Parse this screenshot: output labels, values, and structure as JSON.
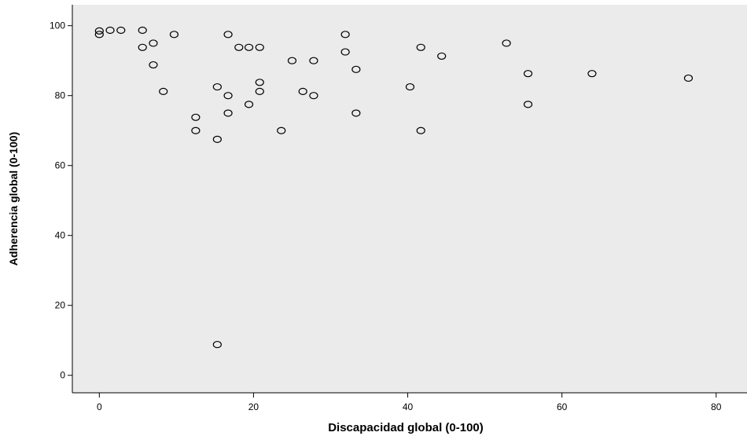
{
  "chart_data": {
    "type": "scatter",
    "title": "",
    "xlabel": "Discapacidad global (0-100)",
    "ylabel": "Adherencia global (0-100)",
    "xlim": [
      -3.5,
      84
    ],
    "ylim": [
      -5,
      106
    ],
    "xticks": [
      0,
      20,
      40,
      60,
      80
    ],
    "yticks": [
      0,
      20,
      40,
      60,
      80,
      100
    ],
    "grid": false,
    "legend": "none",
    "colors": {
      "plot_background": "#ebebeb",
      "marker_stroke": "#000000",
      "axis": "#000000"
    },
    "series": [
      {
        "marker": "hollow-circle",
        "points": [
          [
            0,
            98.5
          ],
          [
            0,
            97.5
          ],
          [
            1.4,
            98.7
          ],
          [
            2.8,
            98.7
          ],
          [
            5.6,
            98.7
          ],
          [
            5.6,
            93.8
          ],
          [
            7.0,
            95.0
          ],
          [
            7.0,
            88.8
          ],
          [
            8.3,
            81.2
          ],
          [
            9.7,
            97.5
          ],
          [
            12.5,
            73.8
          ],
          [
            12.5,
            70.0
          ],
          [
            15.3,
            82.5
          ],
          [
            15.3,
            67.5
          ],
          [
            15.3,
            8.8
          ],
          [
            16.7,
            97.5
          ],
          [
            16.7,
            80.0
          ],
          [
            16.7,
            75.0
          ],
          [
            18.1,
            93.8
          ],
          [
            19.4,
            93.8
          ],
          [
            19.4,
            77.5
          ],
          [
            20.8,
            93.8
          ],
          [
            20.8,
            83.8
          ],
          [
            20.8,
            81.2
          ],
          [
            23.6,
            70.0
          ],
          [
            25.0,
            90.0
          ],
          [
            26.4,
            81.2
          ],
          [
            27.8,
            90.0
          ],
          [
            27.8,
            80.0
          ],
          [
            31.9,
            97.5
          ],
          [
            31.9,
            92.5
          ],
          [
            33.3,
            87.5
          ],
          [
            33.3,
            75.0
          ],
          [
            40.3,
            82.5
          ],
          [
            41.7,
            93.8
          ],
          [
            41.7,
            70.0
          ],
          [
            44.4,
            91.3
          ],
          [
            52.8,
            95.0
          ],
          [
            55.6,
            86.3
          ],
          [
            55.6,
            77.5
          ],
          [
            63.9,
            86.3
          ],
          [
            76.4,
            85.0
          ]
        ]
      }
    ]
  }
}
